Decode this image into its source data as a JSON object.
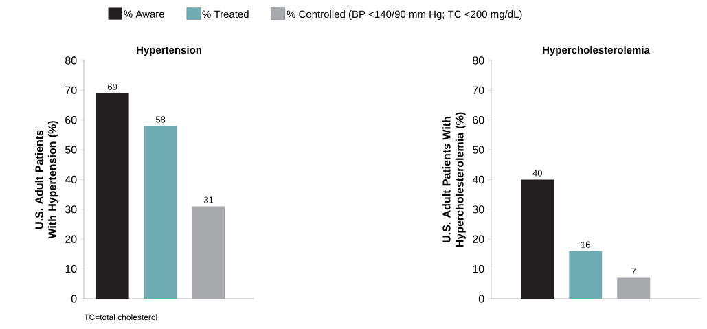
{
  "chart_data": [
    {
      "type": "bar",
      "title": "Hypertension",
      "ylabel": "U.S. Adult Patients With Hypertension (%)",
      "categories": [
        null
      ],
      "series": [
        {
          "name": "% Aware",
          "color": "#231f20",
          "values": [
            69
          ]
        },
        {
          "name": "% Treated",
          "color": "#6fabb3",
          "values": [
            58
          ]
        },
        {
          "name": "% Controlled (BP <140/90 mm Hg; TC <200 mg/dL)",
          "color": "#a7a9ac",
          "values": [
            31
          ]
        }
      ],
      "ylim": [
        0,
        80
      ],
      "yticks": [
        0,
        10,
        20,
        30,
        40,
        50,
        60,
        70,
        80
      ],
      "data_labels": true,
      "legend": "top",
      "grid": false,
      "annotations": [
        "TC=total cholesterol"
      ]
    },
    {
      "type": "bar",
      "title": "Hypercholesterolemia",
      "ylabel": "U.S. Adult Patients With Hypercholesterolemia (%)",
      "categories": [
        null
      ],
      "series": [
        {
          "color": "#231f20",
          "values": [
            40
          ]
        },
        {
          "color": "#6fabb3",
          "values": [
            16
          ]
        },
        {
          "color": "#a7a9ac",
          "values": [
            7
          ]
        }
      ],
      "ylim": [
        0,
        80
      ],
      "yticks": [
        0,
        10,
        20,
        30,
        40,
        50,
        60,
        70,
        80
      ],
      "data_labels": true,
      "grid": false
    }
  ]
}
